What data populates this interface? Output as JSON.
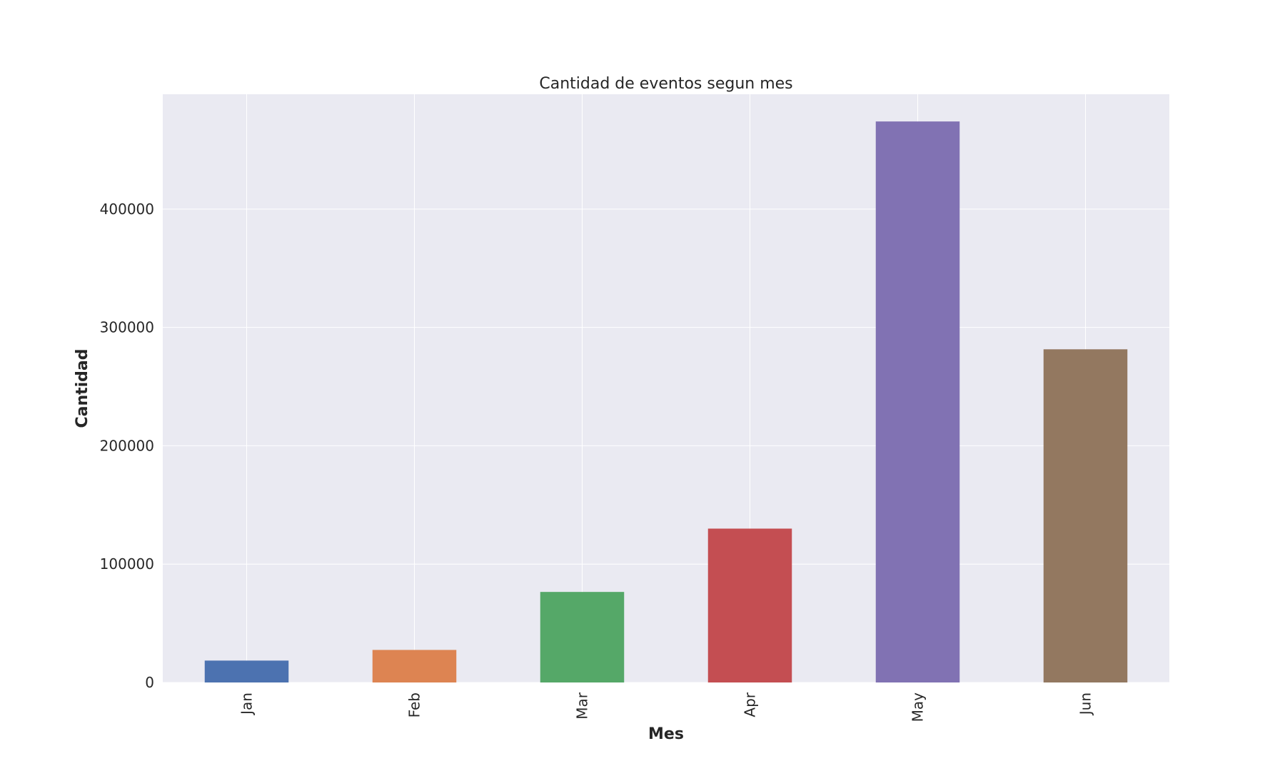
{
  "chart_data": {
    "type": "bar",
    "title": "Cantidad de eventos segun mes",
    "xlabel": "Mes",
    "ylabel": "Cantidad",
    "categories": [
      "Jan",
      "Feb",
      "Mar",
      "Apr",
      "May",
      "Jun"
    ],
    "values": [
      18500,
      27500,
      76500,
      130000,
      474000,
      281500
    ],
    "bar_colors": [
      "#4c72b0",
      "#dd8452",
      "#55a868",
      "#c44e52",
      "#8172b3",
      "#937860"
    ],
    "ylim": [
      0,
      497000
    ],
    "yticks": [
      0,
      100000,
      200000,
      300000,
      400000
    ],
    "ytick_labels": [
      "0",
      "100000",
      "200000",
      "300000",
      "400000"
    ],
    "grid": true,
    "background": "#eaeaf2",
    "grid_color": "#ffffff",
    "xtick_rotation": "vertical"
  }
}
